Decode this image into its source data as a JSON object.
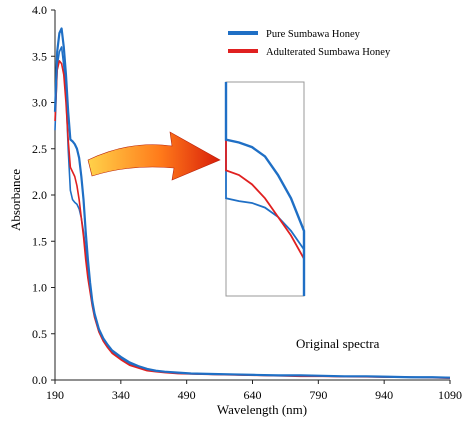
{
  "chart_data": {
    "type": "line",
    "xlabel": "Wavelength (nm)",
    "ylabel": "Absorbance",
    "xlim": [
      190,
      1090
    ],
    "ylim": [
      0,
      4.0
    ],
    "x_ticks": [
      190,
      340,
      490,
      640,
      790,
      940,
      1090
    ],
    "y_ticks": [
      0.0,
      0.5,
      1.0,
      1.5,
      2.0,
      2.5,
      3.0,
      3.5,
      4.0
    ],
    "y_tick_labels": [
      "0.0",
      "0.5",
      "1.0",
      "1.5",
      "2.0",
      "2.5",
      "3.0",
      "3.5",
      "4.0"
    ],
    "legend_position": "top-right",
    "annotation": "Original spectra",
    "inset": {
      "description_visible": false,
      "zoom_x_range": [
        230,
        260
      ],
      "zoom_y_range": [
        0.9,
        3.2
      ]
    },
    "series": [
      {
        "name": "Pure Sumbawa Honey",
        "color": "#1f6fc5",
        "x": [
          190,
          195,
          200,
          205,
          210,
          215,
          220,
          225,
          230,
          235,
          240,
          245,
          250,
          255,
          260,
          265,
          270,
          275,
          280,
          290,
          300,
          310,
          320,
          340,
          360,
          380,
          400,
          420,
          440,
          470,
          500,
          550,
          600,
          650,
          700,
          750,
          800,
          850,
          900,
          950,
          1000,
          1050,
          1090
        ],
        "y": [
          2.9,
          3.55,
          3.75,
          3.8,
          3.6,
          3.3,
          2.9,
          2.6,
          2.58,
          2.55,
          2.5,
          2.4,
          2.2,
          1.95,
          1.6,
          1.3,
          1.05,
          0.85,
          0.72,
          0.55,
          0.45,
          0.38,
          0.32,
          0.25,
          0.19,
          0.15,
          0.12,
          0.1,
          0.09,
          0.08,
          0.07,
          0.065,
          0.06,
          0.055,
          0.05,
          0.05,
          0.045,
          0.04,
          0.04,
          0.035,
          0.03,
          0.03,
          0.025
        ]
      },
      {
        "name": "Adulterated Sumbawa Honey",
        "color": "#e02020",
        "x": [
          190,
          195,
          200,
          205,
          210,
          215,
          220,
          225,
          230,
          235,
          240,
          245,
          250,
          255,
          260,
          265,
          270,
          275,
          280,
          290,
          300,
          310,
          320,
          340,
          360,
          380,
          400,
          420,
          440,
          470,
          500,
          550,
          600,
          650,
          700,
          750,
          800,
          850,
          900,
          950,
          1000,
          1050,
          1090
        ],
        "y": [
          2.8,
          3.35,
          3.45,
          3.42,
          3.3,
          3.0,
          2.6,
          2.3,
          2.25,
          2.2,
          2.1,
          1.95,
          1.75,
          1.55,
          1.3,
          1.1,
          0.95,
          0.8,
          0.68,
          0.52,
          0.42,
          0.35,
          0.29,
          0.22,
          0.16,
          0.13,
          0.1,
          0.09,
          0.08,
          0.07,
          0.065,
          0.06,
          0.055,
          0.05,
          0.045,
          0.04,
          0.04,
          0.035,
          0.035,
          0.03,
          0.03,
          0.025,
          0.02
        ]
      },
      {
        "name": "",
        "color": "#1f6fc5",
        "x": [
          190,
          195,
          200,
          205,
          210,
          215,
          220,
          225,
          230,
          235,
          240,
          245,
          250,
          255,
          260,
          265,
          270,
          275,
          280,
          290,
          300,
          310,
          320,
          340,
          360,
          380,
          400,
          420,
          440,
          470,
          500,
          550,
          600,
          650,
          700,
          750,
          800,
          850,
          900,
          950,
          1000,
          1050,
          1090
        ],
        "y": [
          2.7,
          3.4,
          3.55,
          3.6,
          3.4,
          3.1,
          2.5,
          2.05,
          1.95,
          1.92,
          1.9,
          1.85,
          1.75,
          1.6,
          1.4,
          1.15,
          0.98,
          0.82,
          0.7,
          0.53,
          0.43,
          0.36,
          0.3,
          0.23,
          0.17,
          0.14,
          0.11,
          0.095,
          0.085,
          0.075,
          0.068,
          0.062,
          0.057,
          0.052,
          0.048,
          0.045,
          0.042,
          0.038,
          0.036,
          0.033,
          0.03,
          0.028,
          0.025
        ]
      }
    ]
  },
  "legend": {
    "items": [
      {
        "label": "Pure Sumbawa Honey",
        "color": "#1f6fc5"
      },
      {
        "label": "Adulterated Sumbawa Honey",
        "color": "#e02020"
      }
    ]
  },
  "colors": {
    "axis": "#222222",
    "arrow_start": "#ffd24a",
    "arrow_mid": "#ff7a1a",
    "arrow_end": "#d81e0a"
  }
}
